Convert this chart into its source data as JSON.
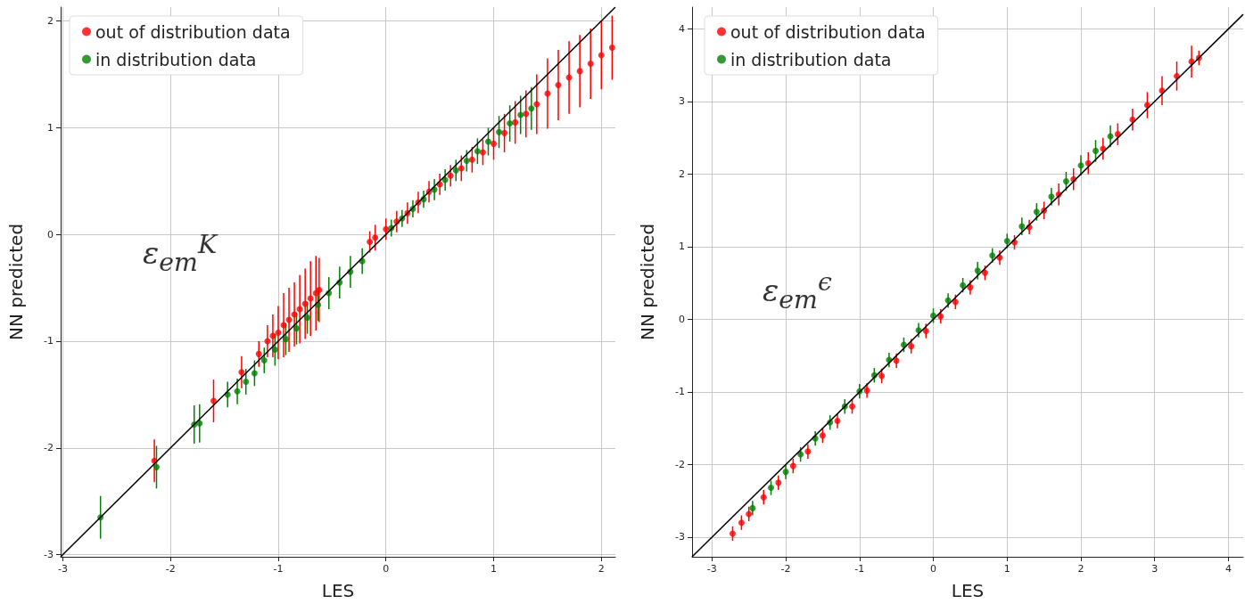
{
  "chart_data": [
    {
      "type": "scatter",
      "xlabel": "LES",
      "ylabel": "NN predicted",
      "annotations": [
        "ε$_{em}$$^{K}$"
      ],
      "xlim": [
        -3.02,
        2.13
      ],
      "ylim": [
        -3.02,
        2.13
      ],
      "xticks": [
        -3,
        -2,
        -1,
        0,
        1,
        2
      ],
      "yticks": [
        -3,
        -2,
        -1,
        0,
        1,
        2
      ],
      "grid": true,
      "legend": "top left",
      "marker": "circle",
      "series": [
        {
          "name": "out of distribution data",
          "color": "#ff0000",
          "x": [
            -2.15,
            -1.6,
            -1.34,
            -1.18,
            -1.1,
            -1.05,
            -1.0,
            -0.95,
            -0.9,
            -0.85,
            -0.8,
            -0.75,
            -0.7,
            -0.65,
            -0.62,
            -0.15,
            -0.1,
            0.0,
            0.1,
            0.2,
            0.3,
            0.4,
            0.5,
            0.6,
            0.7,
            0.8,
            0.9,
            1.0,
            1.1,
            1.2,
            1.3,
            1.4,
            1.5,
            1.6,
            1.7,
            1.8,
            1.9,
            2.0,
            2.1
          ],
          "values": [
            -2.12,
            -1.56,
            -1.29,
            -1.12,
            -1.0,
            -0.95,
            -0.92,
            -0.85,
            -0.8,
            -0.75,
            -0.7,
            -0.65,
            -0.6,
            -0.55,
            -0.52,
            -0.07,
            -0.03,
            0.05,
            0.12,
            0.2,
            0.3,
            0.4,
            0.47,
            0.55,
            0.62,
            0.7,
            0.77,
            0.85,
            0.95,
            1.05,
            1.13,
            1.22,
            1.32,
            1.4,
            1.47,
            1.53,
            1.6,
            1.68,
            1.75
          ],
          "errors": [
            0.2,
            0.2,
            0.15,
            0.12,
            0.15,
            0.2,
            0.25,
            0.3,
            0.3,
            0.3,
            0.32,
            0.33,
            0.35,
            0.35,
            0.3,
            0.1,
            0.12,
            0.1,
            0.1,
            0.1,
            0.1,
            0.1,
            0.1,
            0.1,
            0.12,
            0.12,
            0.12,
            0.15,
            0.18,
            0.2,
            0.22,
            0.28,
            0.33,
            0.33,
            0.34,
            0.34,
            0.33,
            0.32,
            0.3
          ]
        },
        {
          "name": "in distribution data",
          "color": "#008000",
          "x": [
            -2.65,
            -2.13,
            -1.78,
            -1.73,
            -1.47,
            -1.38,
            -1.3,
            -1.22,
            -1.13,
            -1.03,
            -0.93,
            -0.83,
            -0.73,
            -0.63,
            -0.53,
            -0.43,
            -0.33,
            -0.22,
            0.05,
            0.15,
            0.25,
            0.35,
            0.45,
            0.55,
            0.65,
            0.75,
            0.85,
            0.95,
            1.05,
            1.15,
            1.25,
            1.35
          ],
          "values": [
            -2.65,
            -2.18,
            -1.78,
            -1.77,
            -1.5,
            -1.47,
            -1.38,
            -1.3,
            -1.18,
            -1.08,
            -0.98,
            -0.88,
            -0.78,
            -0.66,
            -0.55,
            -0.45,
            -0.35,
            -0.25,
            0.06,
            0.15,
            0.24,
            0.33,
            0.42,
            0.51,
            0.6,
            0.69,
            0.78,
            0.87,
            0.96,
            1.04,
            1.12,
            1.18
          ],
          "errors": [
            0.2,
            0.2,
            0.18,
            0.18,
            0.12,
            0.12,
            0.12,
            0.12,
            0.12,
            0.15,
            0.15,
            0.15,
            0.15,
            0.15,
            0.15,
            0.15,
            0.15,
            0.12,
            0.08,
            0.08,
            0.08,
            0.08,
            0.1,
            0.1,
            0.1,
            0.1,
            0.12,
            0.13,
            0.15,
            0.17,
            0.18,
            0.2
          ]
        },
        {
          "type": "line",
          "marker": "none",
          "color": "#000000",
          "x": [
            -3.02,
            2.13
          ],
          "values": [
            -3.02,
            2.13
          ]
        }
      ]
    },
    {
      "type": "scatter",
      "xlabel": "LES",
      "ylabel": "NN predicted",
      "annotations": [
        "ε$_{em}$$^{ϵ}$"
      ],
      "xlim": [
        -3.27,
        4.2
      ],
      "ylim": [
        -3.27,
        4.3
      ],
      "xticks": [
        -3,
        -2,
        -1,
        0,
        1,
        2,
        3,
        4
      ],
      "yticks": [
        -3,
        -2,
        -1,
        0,
        1,
        2,
        3,
        4
      ],
      "grid": true,
      "legend": "top left",
      "marker": "circle",
      "series": [
        {
          "name": "out of distribution data",
          "color": "#ff0000",
          "x": [
            -2.72,
            -2.6,
            -2.5,
            -2.3,
            -2.1,
            -1.9,
            -1.7,
            -1.5,
            -1.3,
            -1.1,
            -0.9,
            -0.7,
            -0.5,
            -0.3,
            -0.1,
            0.1,
            0.3,
            0.5,
            0.7,
            0.9,
            1.1,
            1.3,
            1.5,
            1.7,
            1.9,
            2.1,
            2.3,
            2.5,
            2.7,
            2.9,
            3.1,
            3.3,
            3.5,
            3.6
          ],
          "values": [
            -2.95,
            -2.8,
            -2.68,
            -2.45,
            -2.25,
            -2.02,
            -1.82,
            -1.6,
            -1.4,
            -1.2,
            -0.98,
            -0.78,
            -0.57,
            -0.37,
            -0.16,
            0.04,
            0.24,
            0.44,
            0.64,
            0.85,
            1.06,
            1.27,
            1.5,
            1.72,
            1.93,
            2.15,
            2.35,
            2.55,
            2.75,
            2.95,
            3.15,
            3.35,
            3.55,
            3.6
          ],
          "errors": [
            0.1,
            0.1,
            0.1,
            0.1,
            0.1,
            0.1,
            0.1,
            0.1,
            0.1,
            0.1,
            0.1,
            0.1,
            0.1,
            0.1,
            0.1,
            0.1,
            0.1,
            0.1,
            0.1,
            0.1,
            0.1,
            0.1,
            0.12,
            0.15,
            0.15,
            0.15,
            0.15,
            0.15,
            0.15,
            0.18,
            0.2,
            0.2,
            0.22,
            0.1
          ]
        },
        {
          "name": "in distribution data",
          "color": "#008000",
          "x": [
            -2.45,
            -2.2,
            -2.0,
            -1.8,
            -1.6,
            -1.4,
            -1.2,
            -1.0,
            -0.8,
            -0.6,
            -0.4,
            -0.2,
            0.0,
            0.2,
            0.4,
            0.6,
            0.8,
            1.0,
            1.2,
            1.4,
            1.6,
            1.8,
            2.0,
            2.2,
            2.4
          ],
          "values": [
            -2.6,
            -2.32,
            -2.1,
            -1.86,
            -1.64,
            -1.42,
            -1.2,
            -0.99,
            -0.77,
            -0.56,
            -0.35,
            -0.15,
            0.05,
            0.26,
            0.47,
            0.67,
            0.88,
            1.08,
            1.28,
            1.48,
            1.69,
            1.9,
            2.12,
            2.32,
            2.52
          ],
          "errors": [
            0.1,
            0.1,
            0.1,
            0.1,
            0.1,
            0.1,
            0.1,
            0.1,
            0.1,
            0.1,
            0.1,
            0.1,
            0.1,
            0.1,
            0.1,
            0.12,
            0.1,
            0.1,
            0.12,
            0.12,
            0.12,
            0.13,
            0.14,
            0.15,
            0.15
          ]
        },
        {
          "type": "line",
          "marker": "none",
          "color": "#000000",
          "x": [
            -3.27,
            4.2
          ],
          "values": [
            -3.27,
            4.2
          ]
        }
      ]
    }
  ]
}
